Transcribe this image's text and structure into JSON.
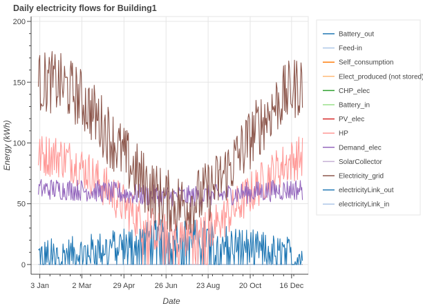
{
  "chart_data": {
    "type": "line",
    "title": "Daily electricity flows for Building1",
    "xlabel": "Date",
    "ylabel": "Energy (kWh)",
    "x_domain_days": [
      1,
      365
    ],
    "xlim": [
      -9,
      373
    ],
    "ylim": [
      -8,
      204
    ],
    "x_ticks": [
      {
        "label": "3 Jan",
        "day": 3
      },
      {
        "label": "2 Mar",
        "day": 61
      },
      {
        "label": "29 Apr",
        "day": 119
      },
      {
        "label": "26 Jun",
        "day": 177
      },
      {
        "label": "23 Aug",
        "day": 235
      },
      {
        "label": "20 Oct",
        "day": 293
      },
      {
        "label": "16 Dec",
        "day": 350
      }
    ],
    "y_ticks": [
      0,
      50,
      100,
      150,
      200
    ],
    "grid": true,
    "legend_position": "right",
    "series": [
      {
        "name": "Battery_out",
        "color": "#1f77b4",
        "profile": "zero"
      },
      {
        "name": "Feed-in",
        "color": "#aec7e8",
        "profile": "zero"
      },
      {
        "name": "Self_consumption",
        "color": "#ff7f0e",
        "profile": "zero"
      },
      {
        "name": "Elect_produced (not stored)",
        "color": "#ffbb78",
        "profile": "zero"
      },
      {
        "name": "CHP_elec",
        "color": "#2ca02c",
        "profile": "zero"
      },
      {
        "name": "Battery_in",
        "color": "#98df8a",
        "profile": "zero"
      },
      {
        "name": "PV_elec",
        "color": "#d62728",
        "profile": "zero"
      },
      {
        "name": "HP",
        "color": "#ff9896",
        "profile": "hp",
        "winter_level": 90,
        "summer_level": 22,
        "noise": 18
      },
      {
        "name": "Demand_elec",
        "color": "#9467bd",
        "profile": "demand",
        "winter_level": 62,
        "summer_level": 56,
        "noise": 9
      },
      {
        "name": "SolarCollector",
        "color": "#c5b0d5",
        "profile": "zero"
      },
      {
        "name": "Electricity_grid",
        "color": "#8c564b",
        "profile": "grid",
        "winter_level": 150,
        "summer_level": 50,
        "noise": 26
      },
      {
        "name": "electricityLink_out",
        "color": "#1f77b4",
        "profile": "link",
        "winter_level": 8,
        "summer_level": 24,
        "noise": 14
      },
      {
        "name": "electricityLink_in",
        "color": "#aec7e8",
        "profile": "zero"
      }
    ]
  }
}
